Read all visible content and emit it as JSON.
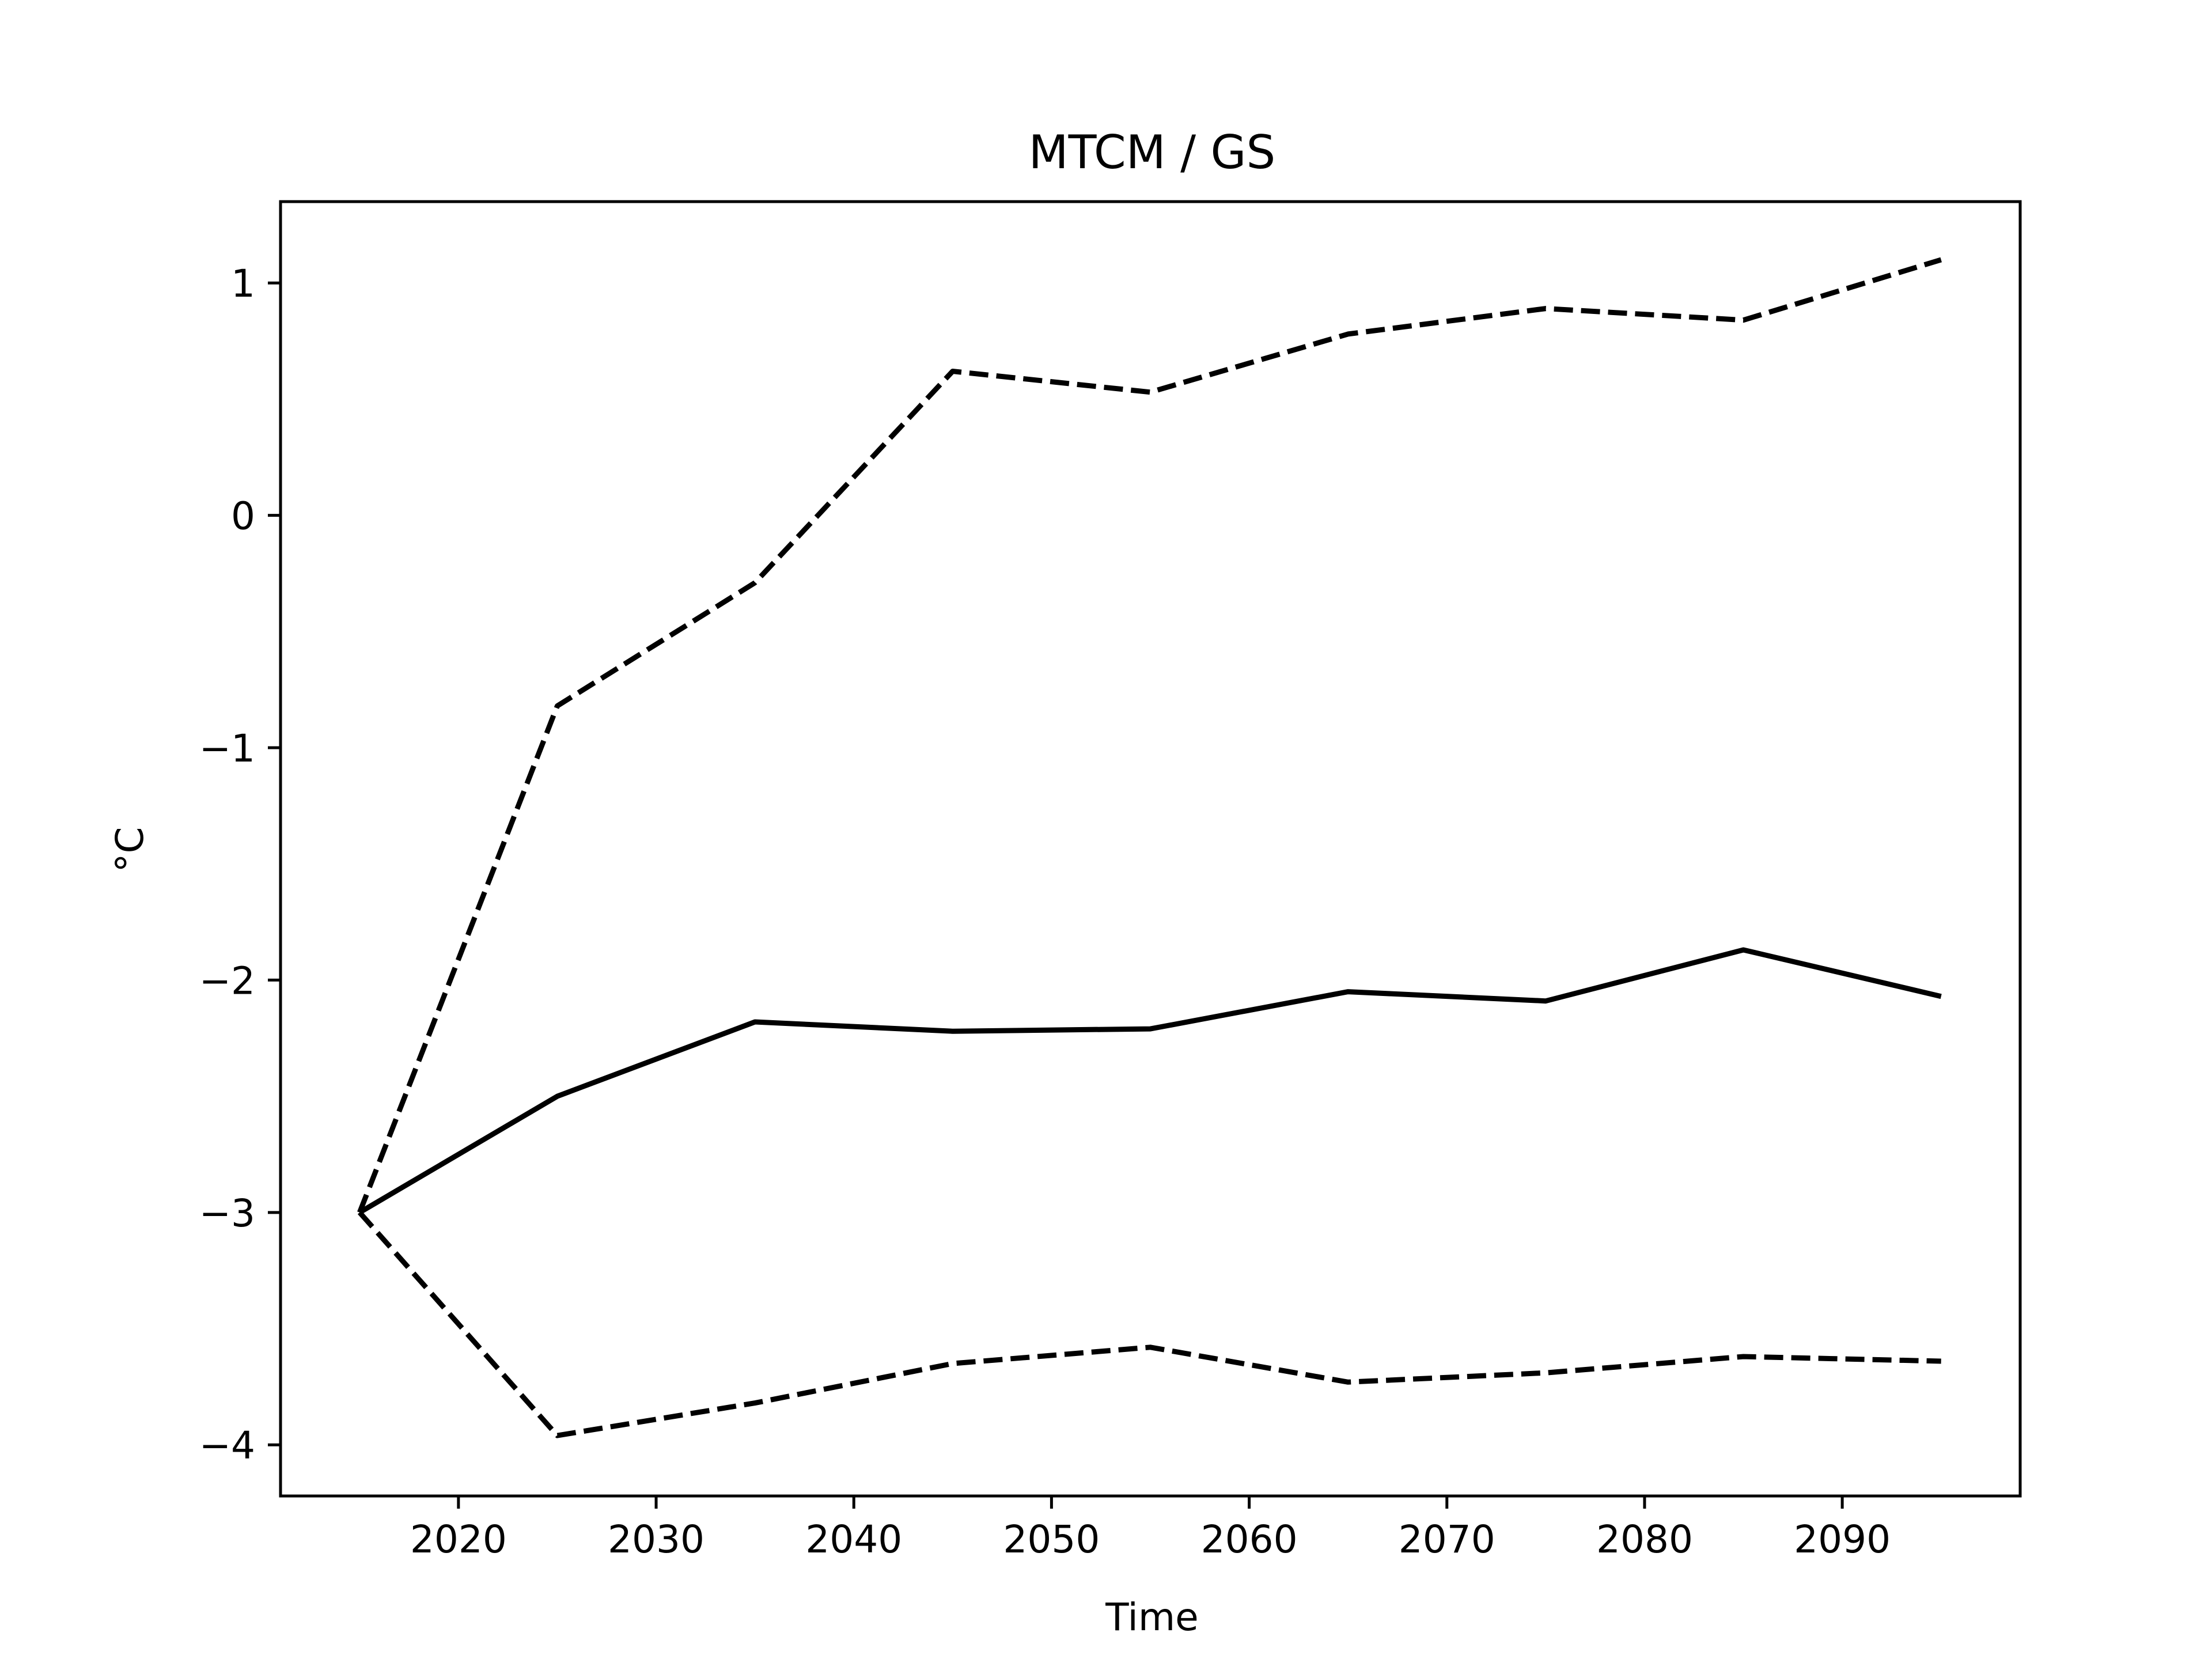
{
  "chart_data": {
    "type": "line",
    "title": "MTCM / GS",
    "xlabel": "Time",
    "ylabel": "°C",
    "xlim": [
      2011,
      2099
    ],
    "ylim": [
      -4.22,
      1.35
    ],
    "grid": false,
    "x_ticks": [
      2020,
      2030,
      2040,
      2050,
      2060,
      2070,
      2080,
      2090
    ],
    "x_tick_labels": [
      "2020",
      "2030",
      "2040",
      "2050",
      "2060",
      "2070",
      "2080",
      "2090"
    ],
    "y_ticks": [
      1,
      0,
      -1,
      -2,
      -3,
      -4
    ],
    "y_tick_labels": [
      "1",
      "0",
      "−1",
      "−2",
      "−3",
      "−4"
    ],
    "x": [
      2015,
      2025,
      2035,
      2045,
      2055,
      2065,
      2075,
      2085,
      2095
    ],
    "series": [
      {
        "style": "solid",
        "color": "#000000",
        "values": [
          -3.0,
          -2.5,
          -2.18,
          -2.22,
          -2.21,
          -2.05,
          -2.09,
          -1.87,
          -2.07
        ]
      },
      {
        "style": "dashed",
        "color": "#000000",
        "values": [
          -3.0,
          -0.82,
          -0.29,
          0.62,
          0.53,
          0.78,
          0.89,
          0.84,
          1.1
        ]
      },
      {
        "style": "dashed",
        "color": "#000000",
        "values": [
          -3.0,
          -3.96,
          -3.82,
          -3.65,
          -3.58,
          -3.73,
          -3.69,
          -3.62,
          -3.64
        ]
      }
    ]
  }
}
